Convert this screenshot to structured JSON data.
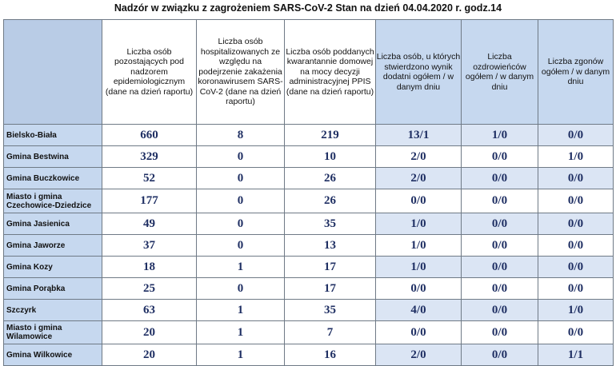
{
  "title": "Nadzór w związku z zagrożeniem SARS-CoV-2   Stan na dzień 04.04.2020 r. godz.14",
  "headers": [
    "",
    "Liczba osób pozostających pod nadzorem epidemiologicznym (dane na dzień raportu)",
    "Liczba osób hospitalizowanych ze względu na podejrzenie zakażenia koronawirusem SARS-CoV-2 (dane na dzień raportu)",
    "Liczba osób poddanych kwarantannie domowej na mocy decyzji administracyjnej PPIS (dane na dzień raportu)",
    "Liczba osób, u których stwierdzono wynik dodatni ogółem / w danym dniu",
    "Liczba ozdrowieńców ogółem / w danym dniu",
    "Liczba zgonów ogółem / w danym dniu"
  ],
  "rows": [
    {
      "name": "Bielsko-Biała",
      "v": [
        "660",
        "8",
        "219",
        "13/1",
        "1/0",
        "0/0"
      ]
    },
    {
      "name": "Gmina Bestwina",
      "v": [
        "329",
        "0",
        "10",
        "2/0",
        "0/0",
        "1/0"
      ]
    },
    {
      "name": "Gmina Buczkowice",
      "v": [
        "52",
        "0",
        "26",
        "2/0",
        "0/0",
        "0/0"
      ]
    },
    {
      "name": "Miasto i gmina Czechowice-Dziedzice",
      "v": [
        "177",
        "0",
        "26",
        "0/0",
        "0/0",
        "0/0"
      ]
    },
    {
      "name": "Gmina Jasienica",
      "v": [
        "49",
        "0",
        "35",
        "1/0",
        "0/0",
        "0/0"
      ]
    },
    {
      "name": "Gmina Jaworze",
      "v": [
        "37",
        "0",
        "13",
        "1/0",
        "0/0",
        "0/0"
      ]
    },
    {
      "name": "Gmina Kozy",
      "v": [
        "18",
        "1",
        "17",
        "1/0",
        "0/0",
        "0/0"
      ]
    },
    {
      "name": "Gmina Porąbka",
      "v": [
        "25",
        "0",
        "17",
        "0/0",
        "0/0",
        "0/0"
      ]
    },
    {
      "name": "Szczyrk",
      "v": [
        "63",
        "1",
        "35",
        "4/0",
        "0/0",
        "1/0"
      ]
    },
    {
      "name": "Miasto i gmina Wilamowice",
      "v": [
        "20",
        "1",
        "7",
        "0/0",
        "0/0",
        "0/0"
      ]
    },
    {
      "name": "Gmina Wilkowice",
      "v": [
        "20",
        "1",
        "16",
        "2/0",
        "0/0",
        "1/1"
      ]
    }
  ]
}
